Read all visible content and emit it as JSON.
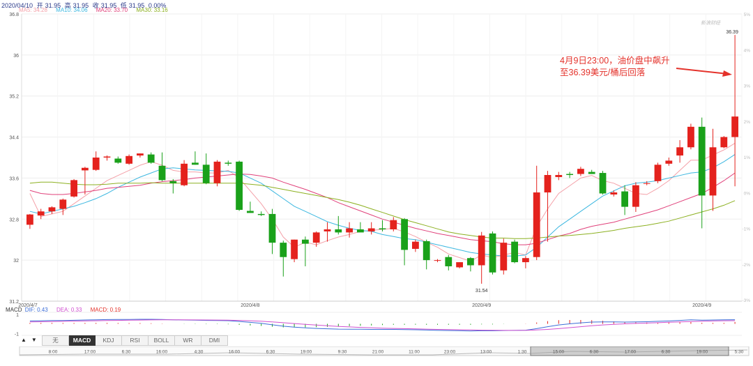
{
  "header": {
    "date": "2020/04/10",
    "open_label": "开",
    "open": "31.95",
    "high_label": "高",
    "high": "31.95",
    "close_label": "收",
    "close": "31.95",
    "low_label": "低",
    "low": "31.95",
    "change": "0.00%"
  },
  "ma": [
    {
      "label": "MA5: 34.28",
      "color": "#f4a0a8"
    },
    {
      "label": "MA10: 34.06",
      "color": "#3cb7e0"
    },
    {
      "label": "MA20: 33.70",
      "color": "#e0407a"
    },
    {
      "label": "MA30: 33.16",
      "color": "#8cb020"
    }
  ],
  "macd_legend": {
    "title": "MACD",
    "dif": "DIF: 0.43",
    "dea": "DEA: 0.33",
    "macd": "MACD: 0.19",
    "dif_color": "#3c6ed8",
    "dea_color": "#d050d0",
    "macd_color": "#e4322b"
  },
  "logo": "新浪财经",
  "annotation": {
    "line1": "4月9日23:00，油价盘中飙升",
    "line2": "至36.39美元/桶后回落"
  },
  "tabs": [
    "无",
    "MACD",
    "KDJ",
    "RSI",
    "BOLL",
    "WR",
    "DMI"
  ],
  "active_tab": "MACD",
  "nav_arrows": [
    "▲",
    "▼"
  ],
  "time_axis": [
    "8:00",
    "17:00",
    "6:30",
    "16:00",
    "4:30",
    "16:00",
    "6:30",
    "19:00",
    "9:30",
    "21:00",
    "11:00",
    "23:00",
    "13:00",
    "1:30",
    "15:00",
    "6:30",
    "17:00",
    "6:30",
    "19:00",
    "5:30"
  ],
  "colors": {
    "up": "#e4221d",
    "down": "#1aa11a",
    "grid": "#eeeeee",
    "axis_text": "#555555"
  },
  "chart_data": {
    "type": "candlestick",
    "ylim": [
      31.2,
      36.8
    ],
    "yticks": [
      31.2,
      32,
      32.8,
      33.6,
      34.4,
      35.2,
      36,
      36.8
    ],
    "right_ticks": [
      "-3%",
      "-2%",
      "-1%",
      "0%",
      "1%",
      "2%",
      "3%",
      "4%",
      "5%"
    ],
    "date_labels": [
      {
        "label": "2020/4/7",
        "index": 0
      },
      {
        "label": "2020/4/8",
        "index": 20
      },
      {
        "label": "2020/4/9",
        "index": 41
      },
      {
        "label": "2020/4/9",
        "index": 61
      }
    ],
    "candles": [
      {
        "o": 32.69,
        "h": 32.9,
        "l": 32.61,
        "c": 32.89
      },
      {
        "o": 32.87,
        "h": 33.0,
        "l": 32.8,
        "c": 32.95
      },
      {
        "o": 32.95,
        "h": 33.05,
        "l": 32.9,
        "c": 33.03
      },
      {
        "o": 33.0,
        "h": 33.2,
        "l": 32.88,
        "c": 33.18
      },
      {
        "o": 33.24,
        "h": 33.58,
        "l": 33.22,
        "c": 33.56
      },
      {
        "o": 33.75,
        "h": 33.82,
        "l": 33.28,
        "c": 33.8
      },
      {
        "o": 33.76,
        "h": 34.12,
        "l": 33.74,
        "c": 34.0
      },
      {
        "o": 34.0,
        "h": 34.04,
        "l": 33.94,
        "c": 34.02
      },
      {
        "o": 33.98,
        "h": 34.02,
        "l": 33.88,
        "c": 33.9
      },
      {
        "o": 33.88,
        "h": 34.06,
        "l": 33.86,
        "c": 34.03
      },
      {
        "o": 34.04,
        "h": 34.08,
        "l": 34.0,
        "c": 34.08
      },
      {
        "o": 34.06,
        "h": 34.1,
        "l": 33.88,
        "c": 33.9
      },
      {
        "o": 33.84,
        "h": 34.1,
        "l": 33.54,
        "c": 33.56
      },
      {
        "o": 33.54,
        "h": 33.58,
        "l": 33.3,
        "c": 33.5
      },
      {
        "o": 33.46,
        "h": 33.95,
        "l": 33.44,
        "c": 33.88
      },
      {
        "o": 33.9,
        "h": 34.12,
        "l": 33.86,
        "c": 33.86
      },
      {
        "o": 33.86,
        "h": 34.08,
        "l": 33.48,
        "c": 33.5
      },
      {
        "o": 33.5,
        "h": 33.95,
        "l": 33.44,
        "c": 33.92
      },
      {
        "o": 33.9,
        "h": 33.94,
        "l": 33.84,
        "c": 33.88
      },
      {
        "o": 33.92,
        "h": 33.94,
        "l": 32.96,
        "c": 32.98
      },
      {
        "o": 32.96,
        "h": 33.14,
        "l": 32.92,
        "c": 32.92
      },
      {
        "o": 32.9,
        "h": 32.95,
        "l": 32.86,
        "c": 32.88
      },
      {
        "o": 32.9,
        "h": 33.0,
        "l": 32.12,
        "c": 32.34
      },
      {
        "o": 32.34,
        "h": 32.38,
        "l": 31.68,
        "c": 32.06
      },
      {
        "o": 32.02,
        "h": 32.4,
        "l": 31.96,
        "c": 32.4
      },
      {
        "o": 32.4,
        "h": 32.46,
        "l": 31.88,
        "c": 32.32
      },
      {
        "o": 32.34,
        "h": 32.56,
        "l": 32.26,
        "c": 32.54
      },
      {
        "o": 32.56,
        "h": 32.74,
        "l": 32.36,
        "c": 32.6
      },
      {
        "o": 32.6,
        "h": 32.86,
        "l": 32.5,
        "c": 32.54
      },
      {
        "o": 32.54,
        "h": 32.74,
        "l": 32.44,
        "c": 32.62
      },
      {
        "o": 32.6,
        "h": 32.74,
        "l": 32.56,
        "c": 32.54
      },
      {
        "o": 32.56,
        "h": 32.74,
        "l": 32.5,
        "c": 32.62
      },
      {
        "o": 32.62,
        "h": 32.78,
        "l": 32.56,
        "c": 32.6
      },
      {
        "o": 32.6,
        "h": 32.84,
        "l": 32.56,
        "c": 32.78
      },
      {
        "o": 32.8,
        "h": 32.82,
        "l": 31.9,
        "c": 32.2
      },
      {
        "o": 32.22,
        "h": 32.4,
        "l": 32.16,
        "c": 32.36
      },
      {
        "o": 32.37,
        "h": 32.4,
        "l": 31.82,
        "c": 32.0
      },
      {
        "o": 32.0,
        "h": 32.02,
        "l": 31.96,
        "c": 32.0
      },
      {
        "o": 32.06,
        "h": 32.1,
        "l": 31.8,
        "c": 31.88
      },
      {
        "o": 31.86,
        "h": 31.96,
        "l": 31.84,
        "c": 31.96
      },
      {
        "o": 32.04,
        "h": 32.06,
        "l": 31.78,
        "c": 31.9
      },
      {
        "o": 31.9,
        "h": 32.55,
        "l": 31.54,
        "c": 32.48
      },
      {
        "o": 32.52,
        "h": 32.56,
        "l": 31.72,
        "c": 31.76
      },
      {
        "o": 31.8,
        "h": 32.42,
        "l": 31.72,
        "c": 32.34
      },
      {
        "o": 32.36,
        "h": 32.4,
        "l": 31.94,
        "c": 31.96
      },
      {
        "o": 31.96,
        "h": 32.08,
        "l": 31.84,
        "c": 32.04
      },
      {
        "o": 32.06,
        "h": 33.84,
        "l": 32.0,
        "c": 33.32
      },
      {
        "o": 33.32,
        "h": 33.74,
        "l": 32.36,
        "c": 33.66
      },
      {
        "o": 33.62,
        "h": 33.72,
        "l": 33.56,
        "c": 33.66
      },
      {
        "o": 33.68,
        "h": 33.72,
        "l": 33.6,
        "c": 33.66
      },
      {
        "o": 33.68,
        "h": 33.82,
        "l": 33.64,
        "c": 33.78
      },
      {
        "o": 33.72,
        "h": 33.76,
        "l": 33.68,
        "c": 33.68
      },
      {
        "o": 33.7,
        "h": 33.74,
        "l": 33.28,
        "c": 33.3
      },
      {
        "o": 33.28,
        "h": 33.36,
        "l": 33.24,
        "c": 33.32
      },
      {
        "o": 33.34,
        "h": 33.46,
        "l": 32.88,
        "c": 33.04
      },
      {
        "o": 33.04,
        "h": 33.52,
        "l": 32.94,
        "c": 33.46
      },
      {
        "o": 33.5,
        "h": 33.54,
        "l": 33.46,
        "c": 33.5
      },
      {
        "o": 33.54,
        "h": 33.9,
        "l": 33.5,
        "c": 33.86
      },
      {
        "o": 33.88,
        "h": 34.0,
        "l": 33.84,
        "c": 33.94
      },
      {
        "o": 34.04,
        "h": 34.34,
        "l": 33.9,
        "c": 34.2
      },
      {
        "o": 34.2,
        "h": 34.66,
        "l": 34.16,
        "c": 34.6
      },
      {
        "o": 34.6,
        "h": 34.78,
        "l": 32.62,
        "c": 33.26
      },
      {
        "o": 33.26,
        "h": 34.56,
        "l": 32.96,
        "c": 34.2
      },
      {
        "o": 34.2,
        "h": 34.42,
        "l": 34.18,
        "c": 34.4
      },
      {
        "o": 34.4,
        "h": 36.39,
        "l": 33.44,
        "c": 34.8
      }
    ],
    "high_marker": {
      "index": 64,
      "label": "36.39"
    },
    "low_marker": {
      "index": 41,
      "label": "31.54"
    },
    "ma_series": [
      {
        "name": "MA5",
        "values": [
          33.3,
          32.85,
          32.9,
          32.95,
          33.1,
          33.25,
          33.4,
          33.55,
          33.65,
          33.75,
          33.85,
          33.92,
          33.85,
          33.75,
          33.72,
          33.72,
          33.7,
          33.7,
          33.75,
          33.6,
          33.35,
          33.1,
          32.8,
          32.45,
          32.25,
          32.35,
          32.3,
          32.38,
          32.45,
          32.5,
          32.56,
          32.58,
          32.6,
          32.62,
          32.55,
          32.46,
          32.35,
          32.25,
          32.12,
          32.05,
          31.98,
          32.1,
          32.05,
          32.1,
          32.15,
          32.1,
          32.65,
          33.0,
          33.3,
          33.45,
          33.6,
          33.65,
          33.55,
          33.5,
          33.4,
          33.3,
          33.28,
          33.4,
          33.55,
          33.75,
          33.95,
          33.95,
          34.05,
          34.15,
          34.28
        ]
      },
      {
        "name": "MA10",
        "values": [
          32.95,
          32.9,
          32.95,
          33.0,
          33.05,
          33.12,
          33.2,
          33.3,
          33.42,
          33.52,
          33.62,
          33.7,
          33.78,
          33.8,
          33.78,
          33.76,
          33.75,
          33.74,
          33.73,
          33.7,
          33.6,
          33.5,
          33.35,
          33.2,
          33.05,
          32.95,
          32.85,
          32.75,
          32.68,
          32.62,
          32.58,
          32.56,
          32.5,
          32.46,
          32.42,
          32.4,
          32.35,
          32.3,
          32.25,
          32.2,
          32.15,
          32.12,
          32.1,
          32.08,
          32.08,
          32.1,
          32.25,
          32.45,
          32.65,
          32.8,
          32.95,
          33.1,
          33.25,
          33.35,
          33.45,
          33.5,
          33.52,
          33.55,
          33.6,
          33.65,
          33.7,
          33.72,
          33.8,
          33.92,
          34.06
        ]
      },
      {
        "name": "MA20",
        "values": [
          33.36,
          33.3,
          33.28,
          33.28,
          33.3,
          33.33,
          33.36,
          33.4,
          33.42,
          33.44,
          33.46,
          33.5,
          33.53,
          33.55,
          33.57,
          33.6,
          33.62,
          33.64,
          33.66,
          33.68,
          33.67,
          33.64,
          33.6,
          33.52,
          33.45,
          33.38,
          33.3,
          33.22,
          33.12,
          33.04,
          32.96,
          32.88,
          32.8,
          32.74,
          32.68,
          32.62,
          32.57,
          32.52,
          32.48,
          32.44,
          32.4,
          32.38,
          32.36,
          32.32,
          32.3,
          32.3,
          32.33,
          32.4,
          32.47,
          32.52,
          32.6,
          32.66,
          32.7,
          32.74,
          32.8,
          32.86,
          32.92,
          32.98,
          33.06,
          33.14,
          33.22,
          33.3,
          33.42,
          33.55,
          33.7
        ]
      },
      {
        "name": "MA30",
        "values": [
          33.5,
          33.52,
          33.52,
          33.5,
          33.48,
          33.47,
          33.47,
          33.48,
          33.5,
          33.5,
          33.5,
          33.51,
          33.5,
          33.5,
          33.5,
          33.5,
          33.5,
          33.5,
          33.5,
          33.5,
          33.48,
          33.46,
          33.42,
          33.38,
          33.34,
          33.3,
          33.26,
          33.22,
          33.18,
          33.13,
          33.07,
          33.0,
          32.93,
          32.86,
          32.79,
          32.73,
          32.67,
          32.61,
          32.55,
          32.51,
          32.48,
          32.45,
          32.43,
          32.43,
          32.42,
          32.42,
          32.43,
          32.45,
          32.47,
          32.48,
          32.5,
          32.52,
          32.55,
          32.58,
          32.62,
          32.65,
          32.68,
          32.72,
          32.76,
          32.82,
          32.88,
          32.94,
          33.0,
          33.07,
          33.16
        ]
      }
    ],
    "macd": {
      "ylim": [
        -1.2,
        1.2
      ],
      "yticks": [
        "1",
        "-1"
      ],
      "dif": [
        0.3,
        0.32,
        0.34,
        0.35,
        0.37,
        0.4,
        0.42,
        0.44,
        0.45,
        0.46,
        0.47,
        0.47,
        0.45,
        0.42,
        0.4,
        0.38,
        0.36,
        0.35,
        0.33,
        0.25,
        0.15,
        0.05,
        -0.1,
        -0.25,
        -0.35,
        -0.42,
        -0.48,
        -0.52,
        -0.55,
        -0.56,
        -0.57,
        -0.58,
        -0.58,
        -0.58,
        -0.6,
        -0.62,
        -0.65,
        -0.68,
        -0.7,
        -0.72,
        -0.74,
        -0.72,
        -0.73,
        -0.7,
        -0.68,
        -0.66,
        -0.5,
        -0.3,
        -0.12,
        0.0,
        0.1,
        0.18,
        0.2,
        0.2,
        0.18,
        0.2,
        0.22,
        0.26,
        0.3,
        0.36,
        0.42,
        0.38,
        0.4,
        0.42,
        0.43
      ],
      "dea": [
        0.2,
        0.22,
        0.24,
        0.26,
        0.28,
        0.3,
        0.32,
        0.34,
        0.36,
        0.38,
        0.39,
        0.41,
        0.42,
        0.42,
        0.42,
        0.41,
        0.4,
        0.39,
        0.38,
        0.36,
        0.32,
        0.27,
        0.2,
        0.12,
        0.03,
        -0.05,
        -0.13,
        -0.2,
        -0.27,
        -0.32,
        -0.37,
        -0.41,
        -0.45,
        -0.48,
        -0.5,
        -0.53,
        -0.55,
        -0.58,
        -0.6,
        -0.62,
        -0.64,
        -0.66,
        -0.67,
        -0.68,
        -0.68,
        -0.68,
        -0.64,
        -0.58,
        -0.5,
        -0.4,
        -0.3,
        -0.2,
        -0.12,
        -0.05,
        0.0,
        0.04,
        0.08,
        0.12,
        0.16,
        0.2,
        0.24,
        0.27,
        0.3,
        0.32,
        0.33
      ],
      "hist": [
        0.1,
        0.1,
        0.1,
        0.09,
        0.09,
        0.1,
        0.1,
        0.1,
        0.09,
        0.08,
        0.08,
        0.06,
        0.03,
        0.0,
        -0.02,
        -0.03,
        -0.04,
        -0.04,
        -0.05,
        -0.11,
        -0.17,
        -0.22,
        -0.3,
        -0.37,
        -0.38,
        -0.37,
        -0.35,
        -0.32,
        -0.28,
        -0.24,
        -0.2,
        -0.17,
        -0.13,
        -0.1,
        -0.1,
        -0.09,
        -0.1,
        -0.1,
        -0.1,
        -0.1,
        -0.1,
        -0.06,
        -0.06,
        -0.02,
        0.0,
        0.02,
        0.14,
        0.28,
        0.38,
        0.4,
        0.4,
        0.38,
        0.32,
        0.25,
        0.18,
        0.16,
        0.14,
        0.14,
        0.14,
        0.16,
        0.18,
        0.11,
        0.1,
        0.1,
        0.19
      ]
    }
  }
}
